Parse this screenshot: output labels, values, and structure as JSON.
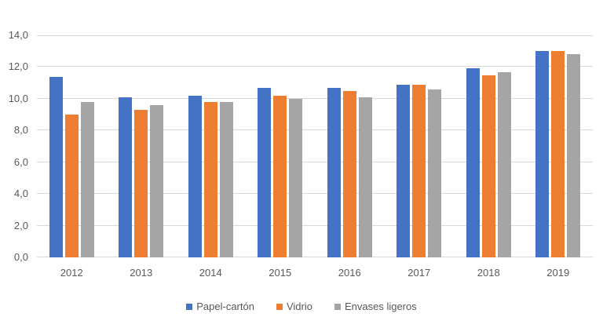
{
  "chart_data": {
    "type": "bar",
    "title": "",
    "xlabel": "",
    "ylabel": "",
    "categories": [
      "2012",
      "2013",
      "2014",
      "2015",
      "2016",
      "2017",
      "2018",
      "2019"
    ],
    "series": [
      {
        "name": "Papel-cartón",
        "color": "#4472C4",
        "values": [
          11.4,
          10.1,
          10.2,
          10.7,
          10.7,
          10.9,
          11.9,
          13.0
        ]
      },
      {
        "name": "Vidrio",
        "color": "#ED7D31",
        "values": [
          9.0,
          9.3,
          9.8,
          10.2,
          10.5,
          10.9,
          11.5,
          13.0
        ]
      },
      {
        "name": "Envases ligeros",
        "color": "#A5A5A5",
        "values": [
          9.8,
          9.6,
          9.8,
          10.0,
          10.1,
          10.6,
          11.7,
          12.8
        ]
      }
    ],
    "ylim": [
      0,
      14
    ],
    "ytick_step": 2,
    "ytick_labels": [
      "0,0",
      "2,0",
      "4,0",
      "6,0",
      "8,0",
      "10,0",
      "12,0",
      "14,0"
    ],
    "grid": true,
    "legend_position": "bottom"
  },
  "colors": {
    "background": "#FFFFFF",
    "gridline": "#D9D9D9",
    "axis_text": "#595959",
    "series_blue": "#4472C4",
    "series_orange": "#ED7D31",
    "series_gray": "#A5A5A5"
  }
}
